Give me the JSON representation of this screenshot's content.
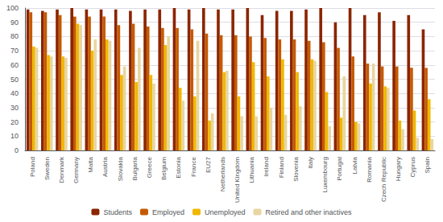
{
  "chart_data": {
    "type": "bar",
    "categories": [
      "Poland",
      "Sweden",
      "Denmark",
      "Germany",
      "Malta",
      "Austria",
      "Slovakia",
      "Bulgaria",
      "Greece",
      "Belgium",
      "Estonia",
      "France",
      "EU27",
      "Netherlands",
      "United Kingdom",
      "Lithuania",
      "Ireland",
      "Finland",
      "Slovenia",
      "Italy",
      "Luxembourg",
      "Portugal",
      "Latvia",
      "Romania",
      "Czech Republic",
      "Hungary",
      "Cyprus",
      "Spain"
    ],
    "series": [
      {
        "name": "Students",
        "color": "#8B2500",
        "values": [
          99,
          98,
          99,
          100,
          99,
          99,
          99,
          98,
          99,
          99,
          100,
          99,
          100,
          99,
          99,
          100,
          95,
          98,
          98,
          99,
          100,
          90,
          100,
          95,
          97,
          91,
          95,
          85
        ]
      },
      {
        "name": "Employed",
        "color": "#C55A00",
        "values": [
          97,
          97,
          95,
          94,
          94,
          94,
          88,
          89,
          87,
          86,
          86,
          85,
          82,
          81,
          81,
          80,
          79,
          78,
          78,
          77,
          76,
          72,
          66,
          61,
          59,
          59,
          58,
          58
        ]
      },
      {
        "name": "Unemployed",
        "color": "#F0B800",
        "values": [
          73,
          67,
          66,
          89,
          70,
          78,
          53,
          48,
          53,
          74,
          44,
          38,
          21,
          55,
          38,
          62,
          52,
          64,
          55,
          64,
          41,
          23,
          20,
          47,
          45,
          21,
          28,
          36
        ]
      },
      {
        "name": "Retired and other inactives",
        "color": "#E8D5A0",
        "values": [
          72,
          66,
          65,
          88,
          78,
          77,
          59,
          72,
          47,
          80,
          35,
          77,
          26,
          56,
          24,
          24,
          30,
          25,
          31,
          63,
          17,
          52,
          19,
          61,
          44,
          15,
          9,
          8
        ]
      }
    ],
    "ylim": [
      0,
      100
    ],
    "yticks": [
      0,
      10,
      20,
      30,
      40,
      50,
      60,
      70,
      80,
      90,
      100
    ],
    "grid": true,
    "legend": "bottom"
  }
}
